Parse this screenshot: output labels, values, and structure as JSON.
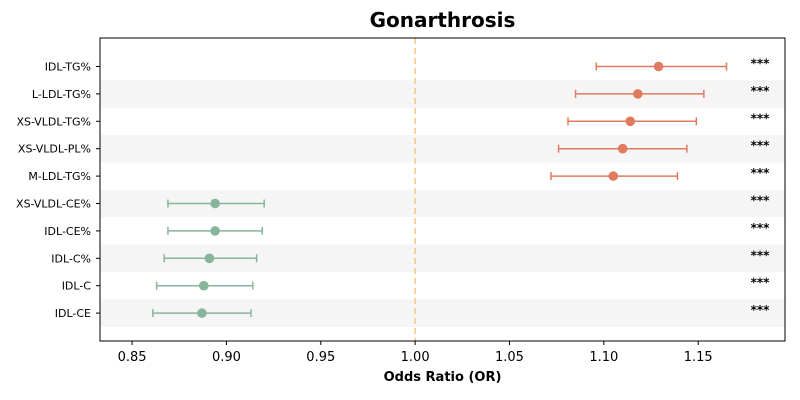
{
  "chart_data": {
    "type": "forest",
    "title": "Gonarthrosis",
    "xlabel": "Odds Ratio (OR)",
    "ylabel": "",
    "xlim": [
      0.833,
      1.196
    ],
    "xticks": [
      "0.85",
      "0.90",
      "0.95",
      "1.00",
      "1.05",
      "1.10",
      "1.15"
    ],
    "reference_line": 1.0,
    "grid": false,
    "row_shading": "alternating",
    "colors": {
      "risk": "#E07B5F",
      "protective": "#87B59C",
      "reference": "#F5C98A",
      "shade": "#F5F5F5"
    },
    "rows": [
      {
        "label": "IDL-TG%",
        "or": 1.129,
        "lo": 1.096,
        "hi": 1.165,
        "sig": "***",
        "group": "risk"
      },
      {
        "label": "L-LDL-TG%",
        "or": 1.118,
        "lo": 1.085,
        "hi": 1.153,
        "sig": "***",
        "group": "risk"
      },
      {
        "label": "XS-VLDL-TG%",
        "or": 1.114,
        "lo": 1.081,
        "hi": 1.149,
        "sig": "***",
        "group": "risk"
      },
      {
        "label": "XS-VLDL-PL%",
        "or": 1.11,
        "lo": 1.076,
        "hi": 1.144,
        "sig": "***",
        "group": "risk"
      },
      {
        "label": "M-LDL-TG%",
        "or": 1.105,
        "lo": 1.072,
        "hi": 1.139,
        "sig": "***",
        "group": "risk"
      },
      {
        "label": "XS-VLDL-CE%",
        "or": 0.894,
        "lo": 0.869,
        "hi": 0.92,
        "sig": "***",
        "group": "protective"
      },
      {
        "label": "IDL-CE%",
        "or": 0.894,
        "lo": 0.869,
        "hi": 0.919,
        "sig": "***",
        "group": "protective"
      },
      {
        "label": "IDL-C%",
        "or": 0.891,
        "lo": 0.867,
        "hi": 0.916,
        "sig": "***",
        "group": "protective"
      },
      {
        "label": "IDL-C",
        "or": 0.888,
        "lo": 0.863,
        "hi": 0.914,
        "sig": "***",
        "group": "protective"
      },
      {
        "label": "IDL-CE",
        "or": 0.887,
        "lo": 0.861,
        "hi": 0.913,
        "sig": "***",
        "group": "protective"
      }
    ]
  }
}
